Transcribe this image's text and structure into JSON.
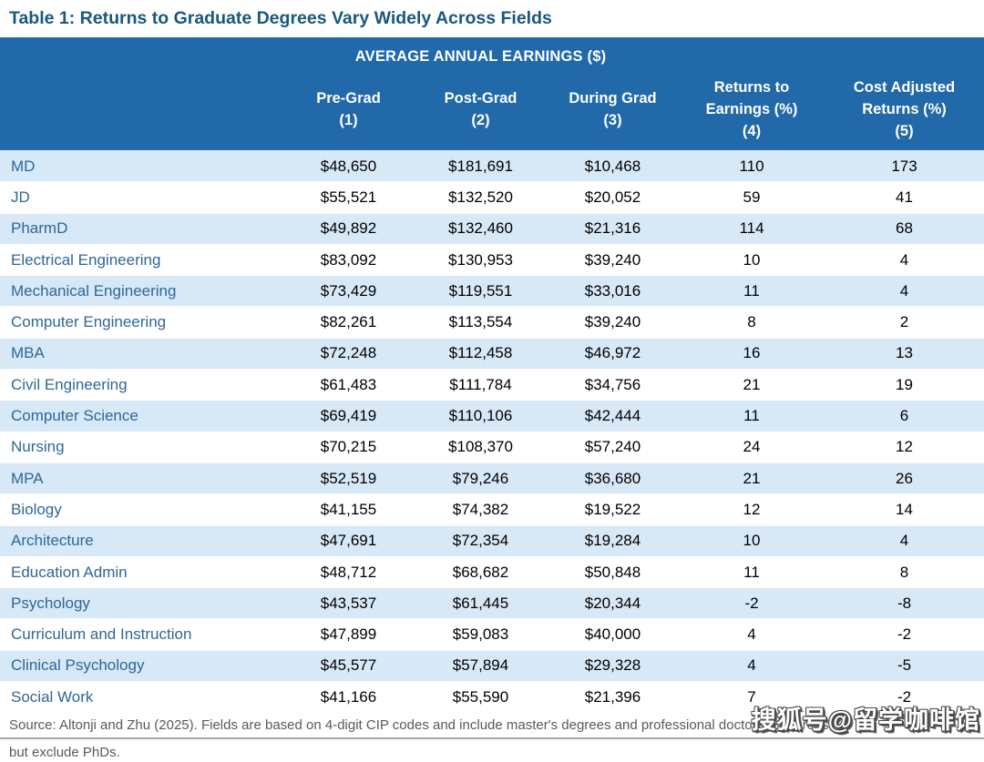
{
  "title": "Table 1: Returns to Graduate Degrees Vary Widely Across Fields",
  "chart_data": {
    "type": "table",
    "group_header": "AVERAGE ANNUAL EARNINGS ($)",
    "columns": [
      "Pre-Grad\n(1)",
      "Post-Grad\n(2)",
      "During Grad\n(3)",
      "Returns to\nEarnings (%)\n(4)",
      "Cost Adjusted\nReturns (%)\n(5)"
    ],
    "rows": [
      {
        "field": "MD",
        "values": [
          "$48,650",
          "$181,691",
          "$10,468",
          "110",
          "173"
        ]
      },
      {
        "field": "JD",
        "values": [
          "$55,521",
          "$132,520",
          "$20,052",
          "59",
          "41"
        ]
      },
      {
        "field": "PharmD",
        "values": [
          "$49,892",
          "$132,460",
          "$21,316",
          "114",
          "68"
        ]
      },
      {
        "field": "Electrical Engineering",
        "values": [
          "$83,092",
          "$130,953",
          "$39,240",
          "10",
          "4"
        ]
      },
      {
        "field": "Mechanical Engineering",
        "values": [
          "$73,429",
          "$119,551",
          "$33,016",
          "11",
          "4"
        ]
      },
      {
        "field": "Computer Engineering",
        "values": [
          "$82,261",
          "$113,554",
          "$39,240",
          "8",
          "2"
        ]
      },
      {
        "field": "MBA",
        "values": [
          "$72,248",
          "$112,458",
          "$46,972",
          "16",
          "13"
        ]
      },
      {
        "field": "Civil Engineering",
        "values": [
          "$61,483",
          "$111,784",
          "$34,756",
          "21",
          "19"
        ]
      },
      {
        "field": "Computer Science",
        "values": [
          "$69,419",
          "$110,106",
          "$42,444",
          "11",
          "6"
        ]
      },
      {
        "field": "Nursing",
        "values": [
          "$70,215",
          "$108,370",
          "$57,240",
          "24",
          "12"
        ]
      },
      {
        "field": "MPA",
        "values": [
          "$52,519",
          "$79,246",
          "$36,680",
          "21",
          "26"
        ]
      },
      {
        "field": "Biology",
        "values": [
          "$41,155",
          "$74,382",
          "$19,522",
          "12",
          "14"
        ]
      },
      {
        "field": "Architecture",
        "values": [
          "$47,691",
          "$72,354",
          "$19,284",
          "10",
          "4"
        ]
      },
      {
        "field": "Education Admin",
        "values": [
          "$48,712",
          "$68,682",
          "$50,848",
          "11",
          "8"
        ]
      },
      {
        "field": "Psychology",
        "values": [
          "$43,537",
          "$61,445",
          "$20,344",
          "-2",
          "-8"
        ]
      },
      {
        "field": "Curriculum and Instruction",
        "values": [
          "$47,899",
          "$59,083",
          "$40,000",
          "4",
          "-2"
        ]
      },
      {
        "field": "Clinical Psychology",
        "values": [
          "$45,577",
          "$57,894",
          "$29,328",
          "4",
          "-5"
        ]
      },
      {
        "field": "Social Work",
        "values": [
          "$41,166",
          "$55,590",
          "$21,396",
          "7",
          "-2"
        ]
      }
    ]
  },
  "footnote": {
    "line1": "Source: Altonji and Zhu (2025). Fields are based on 4-digit CIP codes and include master's degrees and professional doctorate degrees,",
    "line2": "but exclude PhDs."
  },
  "watermark": "搜狐号@留学咖啡馆",
  "colors": {
    "header_bg": "#2169a8",
    "stripe_row_bg": "#d7e8f7",
    "title_text": "#17597e",
    "field_text": "#2d6896",
    "footnote_text": "#595959"
  }
}
